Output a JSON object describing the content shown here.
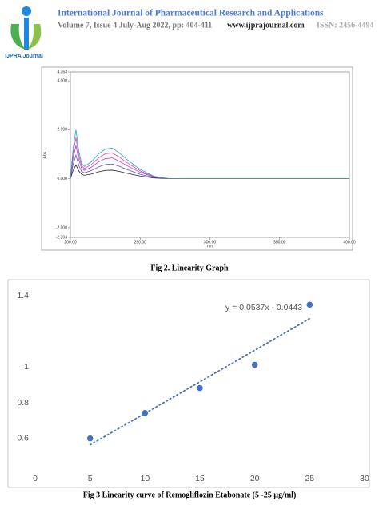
{
  "header": {
    "journal": "International Journal of Pharmaceutical Research and Applications",
    "issue": "Volume 7, Issue 4 July-Aug 2022, pp: 404-411",
    "website": "www.ijprajournal.com",
    "issn": "ISSN: 2456-4494",
    "logo_text": "IJPRA Journal"
  },
  "chart_data": [
    {
      "type": "line",
      "caption": "Fig 2. Linearity Graph",
      "x_label": "nm",
      "y_label": "Abs.",
      "x": [
        200,
        202,
        204,
        206,
        208,
        210,
        215,
        220,
        225,
        230,
        235,
        240,
        250,
        260,
        270,
        280,
        300,
        350,
        400
      ],
      "series": [
        {
          "color": "#222222",
          "values": [
            0,
            0.35,
            0.56,
            0.32,
            0.18,
            0.14,
            0.19,
            0.28,
            0.34,
            0.35,
            0.3,
            0.23,
            0.11,
            0.03,
            0,
            0,
            0,
            0,
            0
          ]
        },
        {
          "color": "#5a4fcf",
          "values": [
            0,
            0.6,
            0.96,
            0.54,
            0.3,
            0.24,
            0.33,
            0.48,
            0.58,
            0.6,
            0.51,
            0.39,
            0.18,
            0.05,
            0.01,
            0,
            0,
            0,
            0
          ]
        },
        {
          "color": "#b040c8",
          "values": [
            0,
            0.85,
            1.36,
            0.77,
            0.43,
            0.34,
            0.47,
            0.68,
            0.82,
            0.85,
            0.72,
            0.55,
            0.26,
            0.07,
            0.01,
            0,
            0,
            0,
            0
          ]
        },
        {
          "color": "#e040b0",
          "values": [
            0,
            1.05,
            1.68,
            0.95,
            0.53,
            0.42,
            0.58,
            0.84,
            1.02,
            1.05,
            0.89,
            0.68,
            0.32,
            0.08,
            0.01,
            0,
            0,
            0,
            0
          ]
        },
        {
          "color": "#20a8c0",
          "values": [
            0,
            1.25,
            2,
            1.13,
            0.63,
            0.5,
            0.69,
            1,
            1.21,
            1.25,
            1.06,
            0.81,
            0.38,
            0.1,
            0.01,
            0,
            0,
            0,
            0
          ]
        }
      ],
      "xlim": [
        200,
        400
      ],
      "xticks": [
        {
          "value": 200,
          "label": "200.00"
        },
        {
          "value": 250,
          "label": "250.00"
        },
        {
          "value": 300,
          "label": "300.00"
        },
        {
          "value": 350,
          "label": "350.00"
        },
        {
          "value": 400,
          "label": "400.00"
        }
      ],
      "ylim": [
        -2.394,
        4.363
      ],
      "yticks": [
        4.363,
        {
          "value": 4,
          "label": "4.000"
        },
        {
          "value": 2,
          "label": "2.000"
        },
        {
          "value": 0,
          "label": "0.000"
        },
        {
          "value": -2,
          "label": "-2.000"
        },
        -2.394
      ]
    },
    {
      "type": "scatter",
      "caption": "Fig 3 Linearity curve of Remogliflozin Etabonate (5 -25 µg/ml)",
      "annotation": "y = 0.0537x - 0.0443",
      "color": "#4472c4",
      "x": [
        5,
        10,
        15,
        20,
        25
      ],
      "values": [
        0.6,
        0.743,
        0.883,
        1.013,
        1.35
      ],
      "xlim": [
        0,
        30
      ],
      "xticks": [
        0,
        5,
        10,
        15,
        20,
        25,
        30
      ],
      "ylim": [
        0.5,
        1.45
      ],
      "yticks": [
        0.6,
        0.8,
        1,
        1.4
      ]
    }
  ]
}
